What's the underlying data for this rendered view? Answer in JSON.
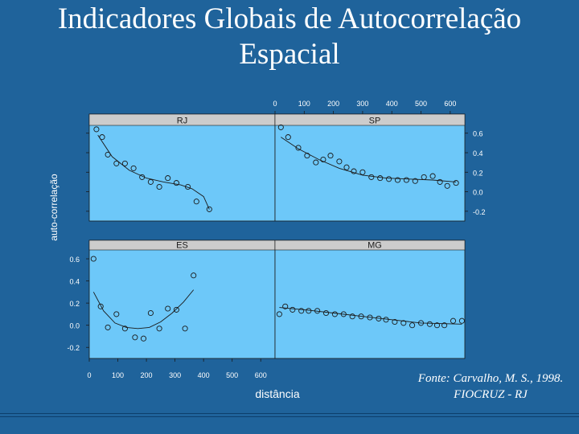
{
  "slide": {
    "title_line1": "Indicadores Globais de Autocorrelação",
    "title_line2": "Espacial",
    "source_line1": "Fonte: Carvalho, M. S., 1998.",
    "source_line2": "FIOCRUZ - RJ"
  },
  "colors": {
    "background": "#1f639b",
    "panel": "#6dc8f9",
    "strip": "#cccccc",
    "text": "#ffffff",
    "ink": "#1a1a1a"
  },
  "chart_data": {
    "type": "scatter",
    "xlabel": "distância",
    "ylabel": "auto-correlação",
    "xlim": [
      0,
      650
    ],
    "ylim": [
      -0.3,
      0.68
    ],
    "x_ticks": [
      0,
      100,
      200,
      300,
      400,
      500,
      600
    ],
    "x_tick_labels": [
      "0",
      "100",
      "200",
      "300",
      "400",
      "500",
      "600"
    ],
    "y_ticks": [
      -0.2,
      0.0,
      0.2,
      0.4,
      0.6
    ],
    "y_tick_labels": [
      "-0.2",
      "0.0",
      "0.2",
      "0.4",
      "0.6"
    ],
    "panels": [
      {
        "name": "RJ",
        "points": [
          {
            "x": 25,
            "y": 0.64
          },
          {
            "x": 45,
            "y": 0.56
          },
          {
            "x": 65,
            "y": 0.38
          },
          {
            "x": 95,
            "y": 0.29
          },
          {
            "x": 125,
            "y": 0.29
          },
          {
            "x": 155,
            "y": 0.24
          },
          {
            "x": 185,
            "y": 0.15
          },
          {
            "x": 215,
            "y": 0.1
          },
          {
            "x": 245,
            "y": 0.05
          },
          {
            "x": 275,
            "y": 0.14
          },
          {
            "x": 305,
            "y": 0.09
          },
          {
            "x": 345,
            "y": 0.05
          },
          {
            "x": 375,
            "y": -0.1
          },
          {
            "x": 420,
            "y": -0.18
          }
        ],
        "fit": [
          {
            "x": 30,
            "y": 0.58
          },
          {
            "x": 80,
            "y": 0.36
          },
          {
            "x": 140,
            "y": 0.22
          },
          {
            "x": 200,
            "y": 0.14
          },
          {
            "x": 260,
            "y": 0.1
          },
          {
            "x": 320,
            "y": 0.07
          },
          {
            "x": 360,
            "y": 0.03
          },
          {
            "x": 400,
            "y": -0.05
          },
          {
            "x": 420,
            "y": -0.18
          }
        ]
      },
      {
        "name": "SP",
        "points": [
          {
            "x": 20,
            "y": 0.66
          },
          {
            "x": 45,
            "y": 0.56
          },
          {
            "x": 80,
            "y": 0.45
          },
          {
            "x": 110,
            "y": 0.37
          },
          {
            "x": 140,
            "y": 0.3
          },
          {
            "x": 165,
            "y": 0.33
          },
          {
            "x": 190,
            "y": 0.37
          },
          {
            "x": 220,
            "y": 0.31
          },
          {
            "x": 245,
            "y": 0.25
          },
          {
            "x": 270,
            "y": 0.21
          },
          {
            "x": 300,
            "y": 0.2
          },
          {
            "x": 330,
            "y": 0.15
          },
          {
            "x": 360,
            "y": 0.14
          },
          {
            "x": 390,
            "y": 0.13
          },
          {
            "x": 420,
            "y": 0.12
          },
          {
            "x": 450,
            "y": 0.12
          },
          {
            "x": 480,
            "y": 0.11
          },
          {
            "x": 510,
            "y": 0.15
          },
          {
            "x": 540,
            "y": 0.16
          },
          {
            "x": 565,
            "y": 0.1
          },
          {
            "x": 590,
            "y": 0.06
          },
          {
            "x": 620,
            "y": 0.09
          }
        ],
        "fit": [
          {
            "x": 20,
            "y": 0.56
          },
          {
            "x": 80,
            "y": 0.44
          },
          {
            "x": 150,
            "y": 0.33
          },
          {
            "x": 220,
            "y": 0.24
          },
          {
            "x": 300,
            "y": 0.17
          },
          {
            "x": 380,
            "y": 0.14
          },
          {
            "x": 460,
            "y": 0.13
          },
          {
            "x": 540,
            "y": 0.12
          },
          {
            "x": 620,
            "y": 0.1
          }
        ]
      },
      {
        "name": "ES",
        "points": [
          {
            "x": 15,
            "y": 0.6
          },
          {
            "x": 40,
            "y": 0.17
          },
          {
            "x": 65,
            "y": -0.02
          },
          {
            "x": 95,
            "y": 0.1
          },
          {
            "x": 125,
            "y": -0.03
          },
          {
            "x": 160,
            "y": -0.11
          },
          {
            "x": 190,
            "y": -0.12
          },
          {
            "x": 215,
            "y": 0.11
          },
          {
            "x": 245,
            "y": -0.03
          },
          {
            "x": 275,
            "y": 0.15
          },
          {
            "x": 305,
            "y": 0.14
          },
          {
            "x": 335,
            "y": -0.03
          },
          {
            "x": 365,
            "y": 0.45
          }
        ],
        "fit": [
          {
            "x": 15,
            "y": 0.3
          },
          {
            "x": 50,
            "y": 0.13
          },
          {
            "x": 90,
            "y": 0.02
          },
          {
            "x": 130,
            "y": -0.02
          },
          {
            "x": 170,
            "y": -0.03
          },
          {
            "x": 210,
            "y": -0.02
          },
          {
            "x": 250,
            "y": 0.03
          },
          {
            "x": 290,
            "y": 0.11
          },
          {
            "x": 330,
            "y": 0.21
          },
          {
            "x": 365,
            "y": 0.32
          }
        ]
      },
      {
        "name": "MG",
        "points": [
          {
            "x": 15,
            "y": 0.1
          },
          {
            "x": 35,
            "y": 0.17
          },
          {
            "x": 60,
            "y": 0.14
          },
          {
            "x": 90,
            "y": 0.13
          },
          {
            "x": 115,
            "y": 0.13
          },
          {
            "x": 145,
            "y": 0.13
          },
          {
            "x": 175,
            "y": 0.11
          },
          {
            "x": 205,
            "y": 0.1
          },
          {
            "x": 235,
            "y": 0.1
          },
          {
            "x": 265,
            "y": 0.08
          },
          {
            "x": 295,
            "y": 0.08
          },
          {
            "x": 325,
            "y": 0.07
          },
          {
            "x": 355,
            "y": 0.06
          },
          {
            "x": 380,
            "y": 0.05
          },
          {
            "x": 410,
            "y": 0.03
          },
          {
            "x": 440,
            "y": 0.02
          },
          {
            "x": 470,
            "y": 0.0
          },
          {
            "x": 500,
            "y": 0.02
          },
          {
            "x": 530,
            "y": 0.01
          },
          {
            "x": 555,
            "y": 0.0
          },
          {
            "x": 580,
            "y": 0.0
          },
          {
            "x": 610,
            "y": 0.04
          },
          {
            "x": 640,
            "y": 0.04
          }
        ],
        "fit": [
          {
            "x": 15,
            "y": 0.16
          },
          {
            "x": 100,
            "y": 0.14
          },
          {
            "x": 200,
            "y": 0.11
          },
          {
            "x": 300,
            "y": 0.08
          },
          {
            "x": 400,
            "y": 0.05
          },
          {
            "x": 500,
            "y": 0.02
          },
          {
            "x": 640,
            "y": 0.01
          }
        ]
      }
    ]
  }
}
